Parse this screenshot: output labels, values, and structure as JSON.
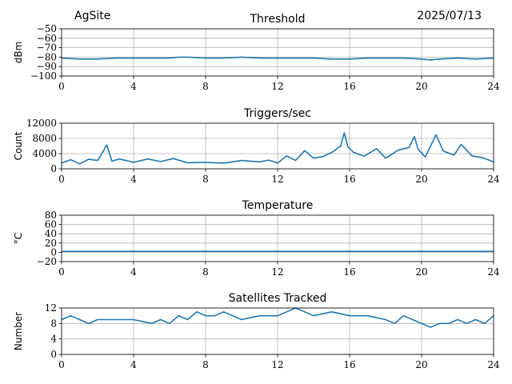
{
  "header": {
    "site": "AgSite",
    "date": "2025/07/13"
  },
  "colors": {
    "series": "#1f77b4",
    "grid": "#b0b0b0",
    "axis": "#000000"
  },
  "chart_data": [
    {
      "type": "line",
      "title": "Threshold",
      "xlabel": "",
      "ylabel": "dBm",
      "xlim": [
        0,
        24
      ],
      "ylim": [
        -100,
        -50
      ],
      "xticks": [
        0,
        4,
        8,
        12,
        16,
        20,
        24
      ],
      "yticks": [
        -100,
        -90,
        -80,
        -70,
        -60,
        -50
      ],
      "ytick_labels": [
        "−100",
        "−90",
        "−80",
        "−70",
        "−60",
        "−50"
      ],
      "grid": true,
      "series": [
        {
          "x": [
            0,
            1,
            2,
            3,
            4,
            5,
            6,
            6.5,
            7,
            8,
            9,
            10,
            11,
            12,
            13,
            14,
            15,
            16,
            17,
            18,
            19,
            20,
            20.5,
            21,
            22,
            23,
            24
          ],
          "y": [
            -81,
            -82,
            -82,
            -81,
            -81,
            -81,
            -81,
            -80,
            -80,
            -81,
            -81,
            -80,
            -81,
            -81,
            -81,
            -81,
            -82,
            -82,
            -81,
            -81,
            -81,
            -82,
            -83,
            -82,
            -81,
            -82,
            -81
          ]
        }
      ]
    },
    {
      "type": "line",
      "title": "Triggers/sec",
      "xlabel": "",
      "ylabel": "Count",
      "xlim": [
        0,
        24
      ],
      "ylim": [
        0,
        12000
      ],
      "xticks": [
        0,
        4,
        8,
        12,
        16,
        20,
        24
      ],
      "yticks": [
        0,
        4000,
        8000,
        12000
      ],
      "ytick_labels": [
        "0",
        "4000",
        "8000",
        "12000"
      ],
      "grid": true,
      "series": [
        {
          "x": [
            0,
            0.5,
            1,
            1.5,
            2,
            2.3,
            2.5,
            2.8,
            3.2,
            4,
            4.8,
            5.5,
            6.2,
            7,
            8,
            9,
            10,
            11,
            11.5,
            12,
            12.5,
            13,
            13.5,
            14,
            14.5,
            15,
            15.5,
            15.7,
            15.9,
            16.2,
            16.8,
            17.5,
            18,
            18.7,
            19.3,
            19.6,
            19.8,
            20.2,
            20.6,
            20.8,
            21.2,
            21.8,
            22.2,
            22.8,
            23.4,
            24
          ],
          "y": [
            1500,
            2400,
            1300,
            2500,
            2200,
            4500,
            6300,
            2000,
            2600,
            1700,
            2600,
            1900,
            2700,
            1600,
            1700,
            1500,
            2200,
            1800,
            2300,
            1500,
            3400,
            2200,
            4800,
            2800,
            3200,
            4300,
            6000,
            9500,
            5800,
            4400,
            3300,
            5300,
            2800,
            4900,
            5600,
            8500,
            5200,
            3100,
            7000,
            9000,
            4700,
            3600,
            6400,
            3400,
            2900,
            1800
          ]
        }
      ]
    },
    {
      "type": "line",
      "title": "Temperature",
      "xlabel": "",
      "ylabel": "°C",
      "xlim": [
        0,
        24
      ],
      "ylim": [
        -20,
        80
      ],
      "xticks": [
        0,
        4,
        8,
        12,
        16,
        20,
        24
      ],
      "yticks": [
        -20,
        0,
        20,
        40,
        60,
        80
      ],
      "ytick_labels": [
        "−20",
        "0",
        "20",
        "40",
        "60",
        "80"
      ],
      "grid": true,
      "series": [
        {
          "x": [
            0,
            24
          ],
          "y": [
            2,
            2
          ]
        }
      ]
    },
    {
      "type": "line",
      "title": "Satellites Tracked",
      "xlabel": "",
      "ylabel": "Number",
      "xlim": [
        0,
        24
      ],
      "ylim": [
        0,
        12
      ],
      "xticks": [
        0,
        4,
        8,
        12,
        16,
        20,
        24
      ],
      "yticks": [
        0,
        4,
        8,
        12
      ],
      "ytick_labels": [
        "0",
        "4",
        "8",
        "12"
      ],
      "grid": true,
      "series": [
        {
          "x": [
            0,
            0.5,
            1,
            1.5,
            2,
            3,
            4,
            5,
            5.5,
            6,
            6.5,
            7,
            7.5,
            8,
            8.5,
            9,
            10,
            11,
            12,
            12.5,
            13,
            13.5,
            14,
            15,
            16,
            17,
            18,
            18.5,
            19,
            19.5,
            20,
            20.5,
            21,
            21.5,
            22,
            22.5,
            23,
            23.5,
            24
          ],
          "y": [
            9,
            10,
            9,
            8,
            9,
            9,
            9,
            8,
            9,
            8,
            10,
            9,
            11,
            10,
            10,
            11,
            9,
            10,
            10,
            11,
            12,
            11,
            10,
            11,
            10,
            10,
            9,
            8,
            10,
            9,
            8,
            7,
            8,
            8,
            9,
            8,
            9,
            8,
            10
          ]
        }
      ]
    }
  ]
}
